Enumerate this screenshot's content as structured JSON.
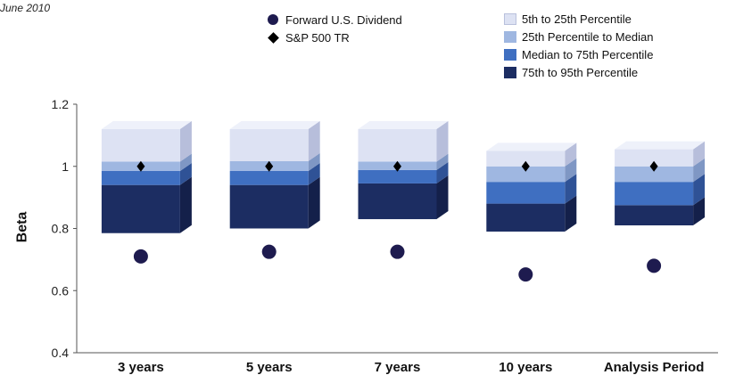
{
  "note": "June 2010",
  "legend": {
    "markers": [
      {
        "label": "Forward U.S. Dividend",
        "color": "#1e1b4f",
        "shape": "circle"
      },
      {
        "label": "S&P 500 TR",
        "color": "#000000",
        "shape": "diamond"
      }
    ],
    "bands": [
      {
        "label": "5th to 25th Percentile",
        "color": "#dde2f3"
      },
      {
        "label": "25th Percentile to Median",
        "color": "#9fb7e1"
      },
      {
        "label": "Median to 75th Percentile",
        "color": "#3f6fc1"
      },
      {
        "label": "75th to 95th Percentile",
        "color": "#1c2d62"
      }
    ]
  },
  "chart_data": {
    "type": "box",
    "ylabel": "Beta",
    "ylim": [
      0.4,
      1.2
    ],
    "yticks": [
      "0.4",
      "0.6",
      "0.8",
      "1",
      "1.2"
    ],
    "yticks_values": [
      0.4,
      0.6,
      0.8,
      1.0,
      1.2
    ],
    "categories": [
      "3 years",
      "5 years",
      "7 years",
      "10 years",
      "Analysis Period"
    ],
    "percentiles": {
      "p5": [
        0.785,
        0.8,
        0.83,
        0.79,
        0.81
      ],
      "p25": [
        0.94,
        0.94,
        0.945,
        0.88,
        0.875
      ],
      "median": [
        0.985,
        0.985,
        0.988,
        0.95,
        0.95
      ],
      "p75": [
        1.015,
        1.017,
        1.015,
        1.0,
        1.0
      ],
      "p95": [
        1.12,
        1.12,
        1.12,
        1.05,
        1.055
      ]
    },
    "series": [
      {
        "name": "Forward U.S. Dividend",
        "values": [
          0.71,
          0.725,
          0.725,
          0.652,
          0.68
        ]
      },
      {
        "name": "S&P 500 TR",
        "values": [
          1.0,
          1.0,
          1.0,
          1.0,
          1.0
        ]
      }
    ],
    "grid": false
  }
}
